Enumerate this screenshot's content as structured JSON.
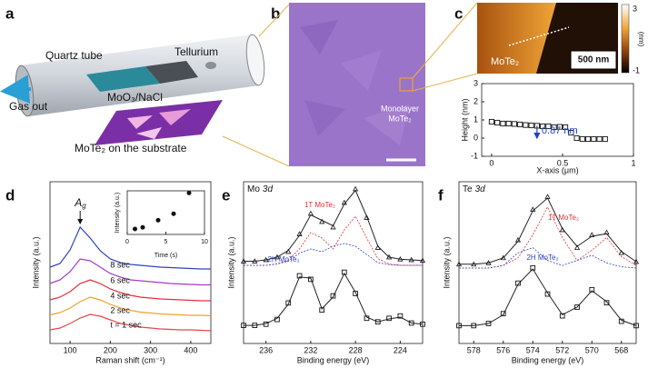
{
  "figure": {
    "panel_labels": [
      "a",
      "b",
      "c",
      "d",
      "e",
      "f"
    ],
    "a": {
      "quartz_tube": "Quartz tube",
      "tellurium": "Tellurium",
      "precursor": "MoO₃/NaCl",
      "gas_out": "Gas out",
      "substrate": "MoTe₂ on the substrate"
    },
    "b": {
      "annotation_line1": "Monolayer",
      "annotation_line2": "MoTe₂"
    },
    "c": {
      "image_label": "MoTe₂",
      "scale_bar": "500 nm",
      "colorbar_unit": "(nm)",
      "colorbar_max": 3,
      "colorbar_min": -1
    }
  },
  "chart_data": [
    {
      "type": "scatter",
      "marker": "square",
      "color": "#111111",
      "xlabel": "X-axis (μm)",
      "ylabel": "Height (nm)",
      "xlim": [
        -0.07,
        1.0
      ],
      "xticks": [
        0,
        0.5,
        1
      ],
      "ylim": [
        -1,
        3
      ],
      "yticks": [
        -1,
        0,
        1,
        2,
        3
      ],
      "annotation": "0.87 nm",
      "annotation_color": "#1f3fbf",
      "x": [
        0,
        0.04,
        0.08,
        0.12,
        0.16,
        0.2,
        0.24,
        0.28,
        0.32,
        0.36,
        0.4,
        0.44,
        0.48,
        0.52,
        0.56,
        0.6,
        0.64,
        0.68,
        0.72,
        0.76,
        0.8
      ],
      "values": [
        0.9,
        0.85,
        0.8,
        0.8,
        0.78,
        0.75,
        0.72,
        0.7,
        0.68,
        0.65,
        0.65,
        0.6,
        0.62,
        0.6,
        0.3,
        0.0,
        -0.05,
        -0.05,
        -0.05,
        -0.05,
        -0.05
      ]
    },
    {
      "type": "line",
      "xlabel": "Raman shift (cm⁻¹)",
      "ylabel": "Intensity (a.u.)",
      "xlim": [
        50,
        450
      ],
      "xticks": [
        100,
        200,
        300,
        400
      ],
      "peak_label": "A",
      "peak_label_subscript": "g",
      "x": [
        50,
        75,
        100,
        125,
        150,
        175,
        200,
        225,
        250,
        275,
        300,
        325,
        350,
        375,
        400,
        425,
        450
      ],
      "series": [
        {
          "name": "8 sec",
          "color": "#2f44c0",
          "values": [
            0.6,
            1.0,
            2.5,
            5.0,
            3.8,
            2.4,
            1.5,
            1.1,
            0.9,
            0.8,
            0.7,
            0.6,
            0.55,
            0.5,
            0.45,
            0.4,
            0.4
          ]
        },
        {
          "name": "6 sec",
          "color": "#a23cc4",
          "values": [
            0.5,
            0.9,
            1.8,
            3.2,
            3.0,
            2.3,
            1.6,
            1.2,
            0.9,
            0.8,
            0.7,
            0.6,
            0.5,
            0.45,
            0.4,
            0.35,
            0.35
          ]
        },
        {
          "name": "4 sec",
          "color": "#e0303a",
          "values": [
            0.4,
            0.7,
            1.3,
            2.2,
            2.6,
            2.2,
            1.6,
            1.2,
            0.9,
            0.7,
            0.6,
            0.5,
            0.45,
            0.4,
            0.35,
            0.3,
            0.3
          ]
        },
        {
          "name": "2 sec",
          "color": "#f2a02e",
          "values": [
            0.35,
            0.6,
            1.1,
            1.8,
            2.3,
            2.0,
            1.5,
            1.1,
            0.85,
            0.65,
            0.55,
            0.45,
            0.4,
            0.35,
            0.3,
            0.3,
            0.25
          ]
        },
        {
          "name": "t = 1 sec",
          "color": "#e34848",
          "values": [
            0.3,
            0.5,
            1.0,
            1.6,
            2.0,
            1.8,
            1.4,
            1.0,
            0.8,
            0.6,
            0.5,
            0.4,
            0.35,
            0.3,
            0.3,
            0.25,
            0.2
          ]
        }
      ]
    },
    {
      "type": "scatter",
      "marker": "circle",
      "color": "#111111",
      "xlabel": "Time (s)",
      "ylabel": "Intensity (a.u.)",
      "xlim": [
        0,
        10
      ],
      "xticks": [
        0,
        5,
        10
      ],
      "ylim": [
        0,
        8
      ],
      "x": [
        1,
        2,
        4,
        6,
        8
      ],
      "values": [
        1.0,
        1.3,
        2.6,
        3.8,
        7.6
      ]
    },
    {
      "type": "spectrum",
      "title": "Mo",
      "title_orbital": "3d",
      "xlabel": "Binding energy (eV)",
      "ylabel": "Intensity (a.u.)",
      "xlim": [
        238,
        222
      ],
      "xticks": [
        236,
        232,
        228,
        224
      ],
      "annotation_1t": "1T MoTe₂",
      "annotation_1t_color": "#e03030",
      "annotation_2h": "2H MoTe₂",
      "annotation_2h_color": "#2f44c0",
      "x": [
        238,
        237,
        236,
        235,
        234,
        233,
        232,
        231,
        230,
        229,
        228,
        227,
        226,
        225,
        224,
        223,
        222
      ],
      "spectra": [
        {
          "marker": "triangle",
          "data": [
            0.3,
            0.3,
            0.4,
            0.6,
            1.0,
            2.3,
            3.8,
            3.2,
            2.8,
            4.6,
            5.6,
            3.5,
            1.3,
            0.6,
            0.45,
            0.4,
            0.35
          ],
          "fit": [
            0.3,
            0.3,
            0.4,
            0.6,
            1.1,
            2.2,
            3.7,
            3.3,
            2.9,
            4.5,
            5.5,
            3.6,
            1.4,
            0.6,
            0.45,
            0.4,
            0.35
          ],
          "components": [
            {
              "color": "#e03030",
              "values": [
                0,
                0,
                0,
                0.1,
                0.4,
                1.2,
                2.4,
                2.0,
                1.2,
                2.6,
                3.6,
                2.0,
                0.5,
                0.1,
                0,
                0,
                0
              ]
            },
            {
              "color": "#2f44c0",
              "values": [
                0,
                0,
                0,
                0.1,
                0.3,
                0.9,
                1.2,
                1.0,
                1.4,
                1.6,
                1.4,
                0.8,
                0.2,
                0.05,
                0,
                0,
                0
              ]
            }
          ]
        },
        {
          "marker": "square",
          "data": [
            0.3,
            0.3,
            0.4,
            0.8,
            2.2,
            4.5,
            4.2,
            1.6,
            2.8,
            4.8,
            3.0,
            0.9,
            0.6,
            0.9,
            1.1,
            0.5,
            0.4
          ],
          "fit": [
            0.3,
            0.3,
            0.45,
            0.9,
            2.1,
            4.4,
            4.3,
            1.7,
            2.7,
            4.7,
            3.1,
            1.0,
            0.6,
            0.85,
            1.0,
            0.5,
            0.4
          ],
          "components": []
        }
      ]
    },
    {
      "type": "spectrum",
      "title": "Te",
      "title_orbital": "3d",
      "xlabel": "Binding energy (eV)",
      "ylabel": "Intensity (a.u.)",
      "xlim": [
        579,
        567
      ],
      "xticks": [
        578,
        576,
        574,
        572,
        570,
        568
      ],
      "annotation_1t": "1T MoTe₂",
      "annotation_1t_color": "#e03030",
      "annotation_2h": "2H MoTe₂",
      "annotation_2h_color": "#2f44c0",
      "x": [
        579,
        578,
        577,
        576,
        575,
        574,
        573,
        572,
        571,
        570,
        569,
        568,
        567
      ],
      "spectra": [
        {
          "marker": "triangle",
          "data": [
            0.3,
            0.3,
            0.4,
            0.8,
            2.2,
            4.6,
            5.6,
            3.0,
            1.6,
            2.6,
            2.8,
            1.2,
            0.5
          ],
          "fit": [
            0.3,
            0.3,
            0.4,
            0.8,
            2.1,
            4.5,
            5.5,
            3.1,
            1.7,
            2.5,
            2.7,
            1.3,
            0.5
          ],
          "components": [
            {
              "color": "#e03030",
              "values": [
                0,
                0,
                0,
                0.2,
                0.8,
                2.6,
                4.8,
                2.4,
                0.6,
                1.4,
                2.4,
                0.9,
                0.2
              ]
            },
            {
              "color": "#2f44c0",
              "values": [
                0,
                0,
                0,
                0.2,
                1.2,
                1.6,
                0.6,
                0.2,
                0.6,
                1.0,
                0.4,
                0.1,
                0
              ]
            }
          ]
        },
        {
          "marker": "square",
          "data": [
            0.3,
            0.3,
            0.5,
            1.4,
            4.2,
            5.6,
            3.2,
            1.2,
            2.0,
            3.6,
            2.4,
            0.7,
            0.3
          ],
          "fit": [
            0.3,
            0.3,
            0.5,
            1.3,
            4.1,
            5.5,
            3.3,
            1.3,
            2.0,
            3.5,
            2.5,
            0.8,
            0.3
          ],
          "components": []
        }
      ]
    }
  ]
}
